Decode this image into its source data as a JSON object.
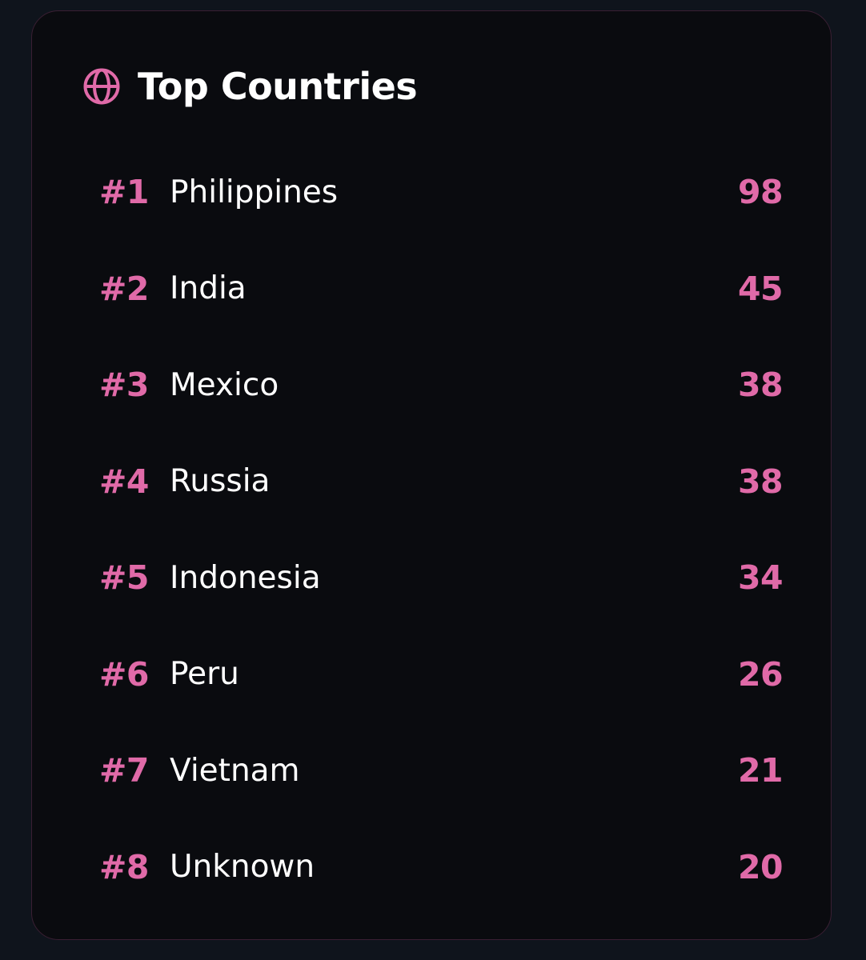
{
  "colors": {
    "accent": "#e06aa8",
    "background": "#0f141c",
    "card": "#0a0b0f",
    "text": "#ffffff"
  },
  "header": {
    "icon": "globe-icon",
    "title": "Top Countries"
  },
  "countries": [
    {
      "rank": "#1",
      "name": "Philippines",
      "count": "98"
    },
    {
      "rank": "#2",
      "name": "India",
      "count": "45"
    },
    {
      "rank": "#3",
      "name": "Mexico",
      "count": "38"
    },
    {
      "rank": "#4",
      "name": "Russia",
      "count": "38"
    },
    {
      "rank": "#5",
      "name": "Indonesia",
      "count": "34"
    },
    {
      "rank": "#6",
      "name": "Peru",
      "count": "26"
    },
    {
      "rank": "#7",
      "name": "Vietnam",
      "count": "21"
    },
    {
      "rank": "#8",
      "name": "Unknown",
      "count": "20"
    }
  ]
}
